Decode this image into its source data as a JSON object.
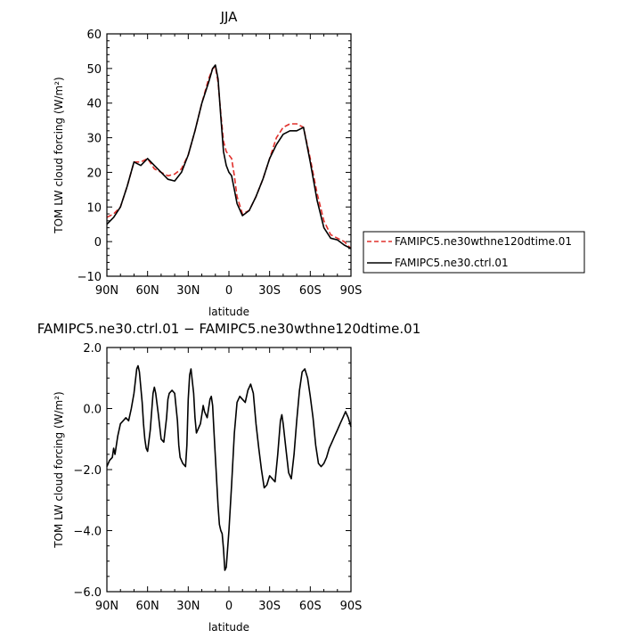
{
  "chart_data": [
    {
      "type": "line",
      "title": "JJA",
      "xlabel": "latitude",
      "ylabel": "TOM LW cloud forcing (W/m²)",
      "xlim": [
        90,
        -90
      ],
      "ylim": [
        -10,
        60
      ],
      "x_ticks": [
        90,
        60,
        30,
        0,
        -30,
        -60,
        -90
      ],
      "x_tick_labels": [
        "90N",
        "60N",
        "30N",
        "0",
        "30S",
        "60S",
        "90S"
      ],
      "y_ticks": [
        -10,
        0,
        10,
        20,
        30,
        40,
        50,
        60
      ],
      "y_tick_labels": [
        "−10",
        "0",
        "10",
        "20",
        "30",
        "40",
        "50",
        "60"
      ],
      "legend": {
        "placement": "right"
      },
      "series": [
        {
          "name": "FAMIPC5.ne30wthne120dtime.01",
          "color": "#e0302c",
          "dash": "dashed",
          "x": [
            90,
            85,
            80,
            75,
            70,
            65,
            60,
            55,
            50,
            45,
            40,
            35,
            30,
            25,
            20,
            15,
            12,
            10,
            8,
            6,
            4,
            2,
            0,
            -2,
            -4,
            -6,
            -10,
            -15,
            -20,
            -25,
            -30,
            -35,
            -40,
            -45,
            -50,
            -55,
            -60,
            -65,
            -70,
            -75,
            -80,
            -85,
            -90
          ],
          "y": [
            7,
            8,
            10,
            16,
            23,
            23,
            24,
            21,
            20,
            19,
            19.5,
            21,
            25,
            32,
            40,
            47,
            50,
            50.5,
            46,
            37,
            29,
            26,
            25,
            24,
            19,
            13,
            8,
            9,
            13,
            18,
            24,
            30,
            33,
            34,
            34,
            33,
            24,
            14,
            6,
            2,
            1,
            0,
            -2
          ]
        },
        {
          "name": "FAMIPC5.ne30.ctrl.01",
          "color": "#000000",
          "dash": "solid",
          "x": [
            90,
            85,
            80,
            75,
            70,
            65,
            60,
            55,
            50,
            45,
            40,
            35,
            30,
            25,
            20,
            15,
            12,
            10,
            8,
            6,
            4,
            2,
            0,
            -2,
            -4,
            -6,
            -10,
            -15,
            -20,
            -25,
            -30,
            -35,
            -40,
            -45,
            -50,
            -55,
            -60,
            -65,
            -70,
            -75,
            -80,
            -85,
            -90
          ],
          "y": [
            5,
            7,
            10,
            16,
            23,
            22,
            24,
            22,
            20,
            18,
            17.5,
            20,
            25,
            32,
            40,
            46,
            50,
            51,
            47,
            36,
            26,
            22,
            20,
            19,
            15,
            11,
            7.5,
            9,
            13,
            18,
            24,
            28,
            31,
            32,
            32,
            33,
            23,
            12,
            4,
            1,
            0.5,
            -1,
            -2
          ]
        }
      ]
    },
    {
      "type": "line",
      "title": "FAMIPC5.ne30.ctrl.01 − FAMIPC5.ne30wthne120dtime.01",
      "xlabel": "latitude",
      "ylabel": "TOM LW cloud forcing (W/m²)",
      "xlim": [
        90,
        -90
      ],
      "ylim": [
        -6,
        2
      ],
      "x_ticks": [
        90,
        60,
        30,
        0,
        -30,
        -60,
        -90
      ],
      "x_tick_labels": [
        "90N",
        "60N",
        "30N",
        "0",
        "30S",
        "60S",
        "90S"
      ],
      "y_ticks": [
        -6,
        -4,
        -2,
        0,
        2
      ],
      "y_tick_labels": [
        "−6.0",
        "−4.0",
        "−2.0",
        "0.0",
        "2.0"
      ],
      "series": [
        {
          "color": "#000000",
          "x": [
            90,
            88,
            86,
            85,
            84,
            82,
            80,
            78,
            76,
            74,
            72,
            70,
            68,
            67,
            66,
            64,
            63,
            62,
            61,
            60,
            58,
            56,
            55,
            54,
            52,
            50,
            48,
            46,
            45,
            44,
            42,
            40,
            38,
            37,
            36,
            34,
            32,
            31,
            30,
            29,
            28,
            26,
            25,
            24,
            22,
            21,
            20,
            19,
            18,
            17,
            16,
            14,
            13,
            12,
            11,
            10,
            8,
            7,
            6,
            5,
            4,
            3,
            2,
            0,
            -2,
            -4,
            -6,
            -8,
            -10,
            -12,
            -14,
            -16,
            -18,
            -20,
            -22,
            -24,
            -26,
            -28,
            -30,
            -32,
            -34,
            -36,
            -38,
            -39,
            -40,
            -42,
            -44,
            -46,
            -48,
            -50,
            -52,
            -54,
            -56,
            -58,
            -60,
            -62,
            -64,
            -66,
            -68,
            -70,
            -72,
            -74,
            -76,
            -78,
            -80,
            -82,
            -84,
            -86,
            -88,
            -90
          ],
          "y": [
            -1.9,
            -1.7,
            -1.6,
            -1.3,
            -1.5,
            -0.9,
            -0.5,
            -0.4,
            -0.3,
            -0.4,
            0.0,
            0.5,
            1.3,
            1.4,
            1.2,
            0.2,
            -0.5,
            -1.0,
            -1.3,
            -1.4,
            -0.7,
            0.5,
            0.7,
            0.5,
            -0.2,
            -1.0,
            -1.1,
            -0.3,
            0.3,
            0.5,
            0.6,
            0.5,
            -0.4,
            -1.2,
            -1.6,
            -1.8,
            -1.9,
            -1.2,
            0.3,
            1.1,
            1.3,
            0.5,
            -0.3,
            -0.8,
            -0.6,
            -0.5,
            -0.2,
            0.1,
            -0.1,
            -0.2,
            -0.3,
            0.3,
            0.4,
            0.1,
            -0.8,
            -1.6,
            -3.2,
            -3.8,
            -4.0,
            -4.1,
            -4.6,
            -5.3,
            -5.2,
            -4.0,
            -2.5,
            -0.8,
            0.2,
            0.4,
            0.3,
            0.2,
            0.6,
            0.8,
            0.5,
            -0.5,
            -1.3,
            -2.0,
            -2.6,
            -2.5,
            -2.2,
            -2.3,
            -2.4,
            -1.5,
            -0.4,
            -0.2,
            -0.5,
            -1.3,
            -2.1,
            -2.3,
            -1.5,
            -0.4,
            0.6,
            1.2,
            1.3,
            1.0,
            0.4,
            -0.3,
            -1.2,
            -1.8,
            -1.9,
            -1.8,
            -1.6,
            -1.3,
            -1.1,
            -0.9,
            -0.7,
            -0.5,
            -0.3,
            -0.1,
            -0.3,
            -0.6
          ]
        }
      ]
    }
  ]
}
